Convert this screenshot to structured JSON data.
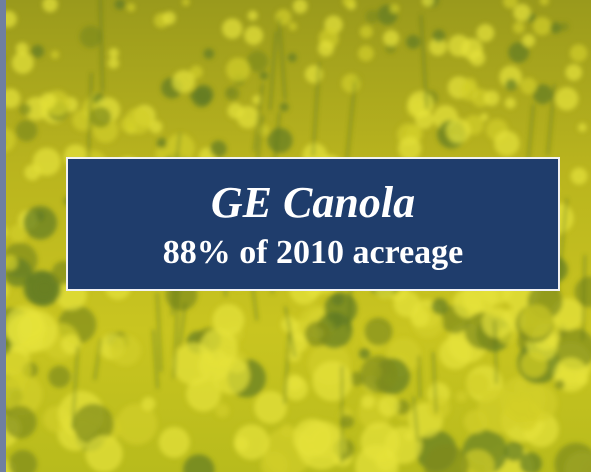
{
  "slide": {
    "title": "GE Canola",
    "subtitle": "88% of 2010 acreage"
  }
}
